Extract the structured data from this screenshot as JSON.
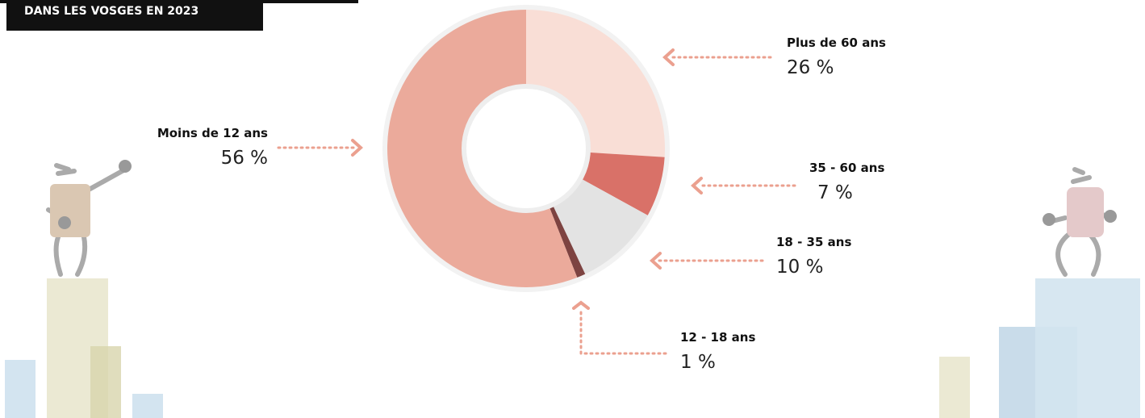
{
  "chart_data": {
    "type": "donut",
    "title": "DANS LES VOSGES EN 2023",
    "categories": [
      "Plus de 60 ans",
      "35 - 60 ans",
      "18 - 35 ans",
      "12 - 18 ans",
      "Moins de 12 ans"
    ],
    "values": [
      26,
      7,
      10,
      1,
      56
    ],
    "value_labels": [
      "26 %",
      "7 %",
      "10 %",
      "1 %",
      "56 %"
    ],
    "colors": [
      "#f9ded6",
      "#d97168",
      "#e3e3e3",
      "#7d4341",
      "#ebaa9b"
    ]
  }
}
